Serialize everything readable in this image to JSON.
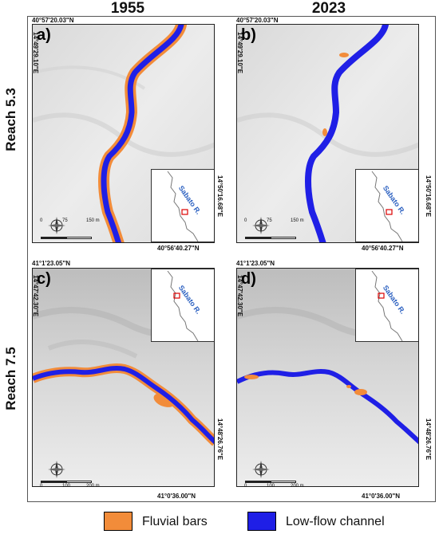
{
  "columns": [
    "1955",
    "2023"
  ],
  "rows": [
    "Reach 5.3",
    "Reach 7.5"
  ],
  "panels": [
    {
      "letter": "a)",
      "coord_top": "40°57'20.03\"N",
      "coord_left": "14°49'29.10\"E",
      "coord_bottom": "40°56'40.27\"N",
      "coord_right": "14°50'16.68\"E",
      "scale": [
        "0",
        "75",
        "150 m"
      ],
      "inset_label": "Sabato R."
    },
    {
      "letter": "b)",
      "coord_top": "40°57'20.03\"N",
      "coord_left": "14°49'29.10\"E",
      "coord_bottom": "40°56'40.27\"N",
      "coord_right": "14°50'16.68\"E",
      "scale": [
        "0",
        "75",
        "150 m"
      ],
      "inset_label": "Sabato R."
    },
    {
      "letter": "c)",
      "coord_top": "41°1'23.05\"N",
      "coord_left": "14°47'42.30\"E",
      "coord_bottom": "41°0'36.00\"N",
      "coord_right": "14°48'26.76\"E",
      "scale": [
        "0",
        "100",
        "200 m"
      ],
      "inset_label": "Sabato R."
    },
    {
      "letter": "d)",
      "coord_top": "41°1'23.05\"N",
      "coord_left": "14°47'42.30\"E",
      "coord_bottom": "41°0'36.00\"N",
      "coord_right": "14°48'26.76\"E",
      "scale": [
        "0",
        "100",
        "200 m"
      ],
      "inset_label": "Sabato R."
    }
  ],
  "legend": [
    {
      "label": "Fluvial bars",
      "color": "#f28c3a"
    },
    {
      "label": "Low-flow channel",
      "color": "#1f1fe6"
    }
  ]
}
